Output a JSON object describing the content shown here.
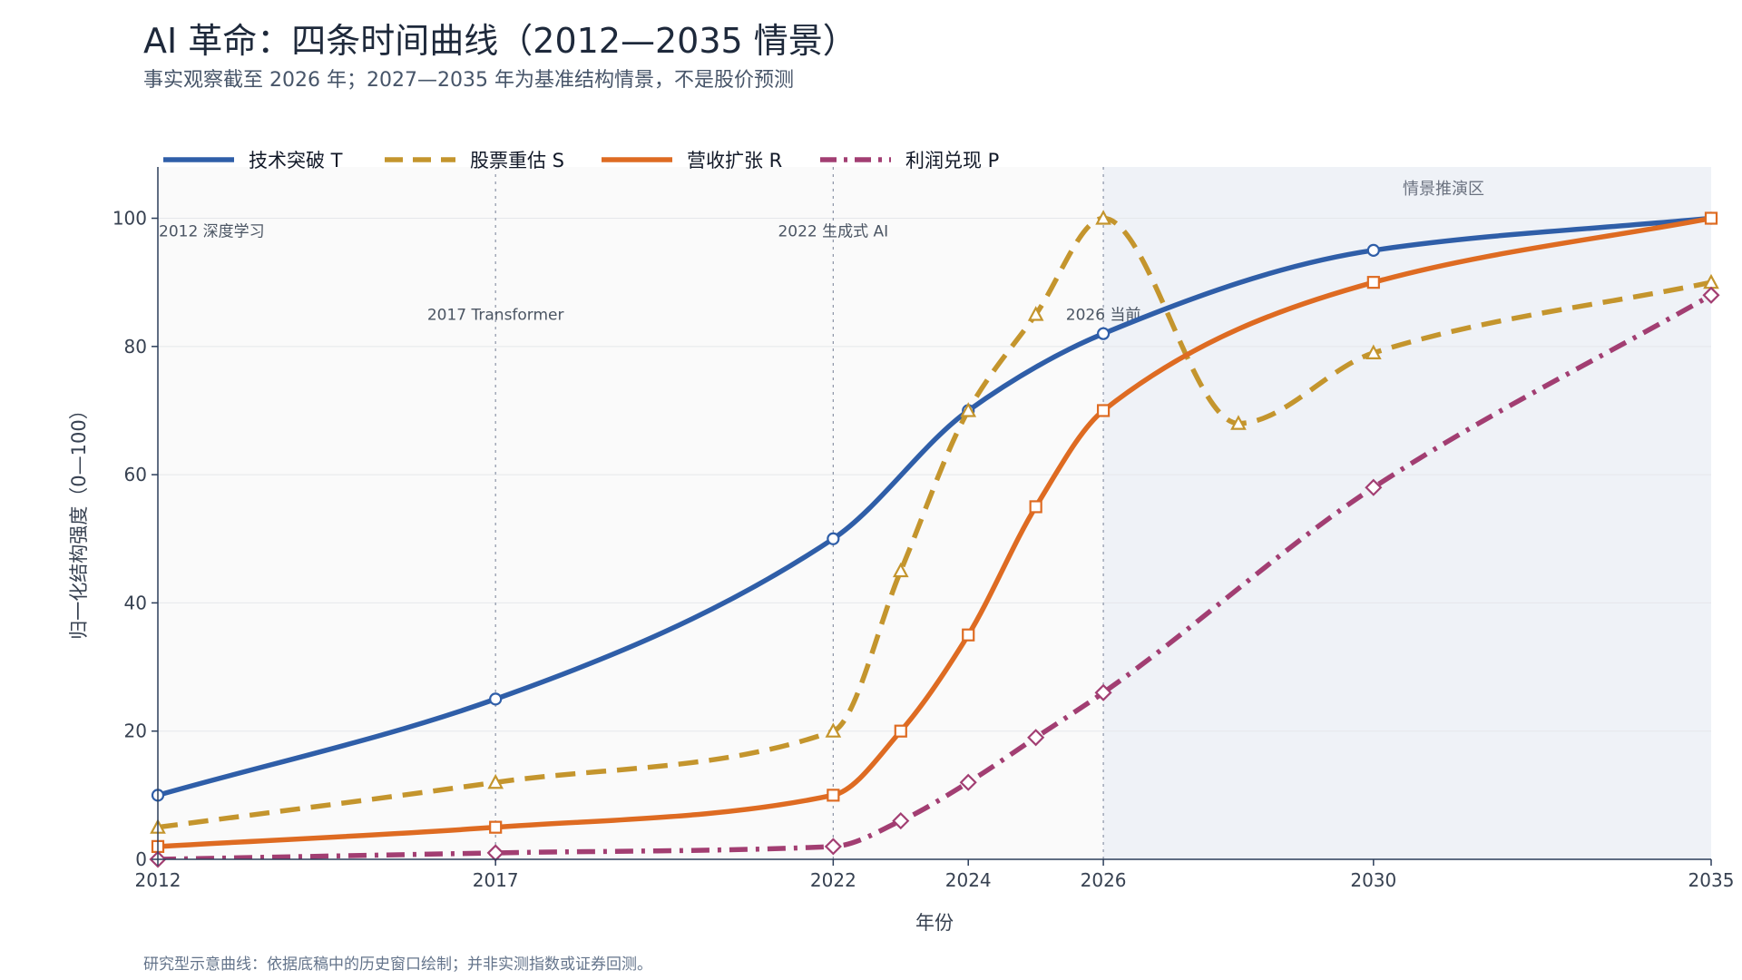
{
  "header": {
    "title": "AI 革命：四条时间曲线（2012—2035 情景）",
    "subtitle": "事实观察截至 2026 年；2027—2035 年为基准结构情景，不是股价预测"
  },
  "footnote": "研究型示意曲线：依据底稿中的历史窗口绘制；并非实测指数或证券回测。",
  "chart_data": {
    "type": "line",
    "xlabel": "年份",
    "ylabel": "归一化结构强度（0—100）",
    "xlim": [
      2012,
      2035
    ],
    "ylim": [
      0,
      108
    ],
    "x_ticks": [
      2012,
      2017,
      2022,
      2024,
      2026,
      2030,
      2035
    ],
    "y_ticks": [
      0,
      20,
      40,
      60,
      80,
      100
    ],
    "grid": "horizontal",
    "legend_position": "top-left",
    "scenario_region": {
      "from": 2026,
      "to": 2035,
      "label": "情景推演区"
    },
    "events": [
      {
        "x": 2012,
        "label": "2012  深度学习",
        "label_y": 98
      },
      {
        "x": 2017,
        "label": "2017  Transformer",
        "label_y": 85
      },
      {
        "x": 2022,
        "label": "2022  生成式 AI",
        "label_y": 98
      },
      {
        "x": 2026,
        "label": "2026  当前",
        "label_y": 85
      }
    ],
    "series": [
      {
        "name": "技术突破 T",
        "color": "#2f5ea8",
        "dash": "solid",
        "marker": "circle",
        "x": [
          2012,
          2017,
          2022,
          2024,
          2026,
          2030,
          2035
        ],
        "values": [
          10,
          25,
          50,
          70,
          82,
          95,
          100
        ]
      },
      {
        "name": "股票重估 S",
        "color": "#c4952d",
        "dash": "dash",
        "marker": "triangle",
        "x": [
          2012,
          2017,
          2022,
          2023,
          2024,
          2025,
          2026,
          2028,
          2030,
          2035
        ],
        "values": [
          5,
          12,
          20,
          45,
          70,
          85,
          100,
          68,
          79,
          90
        ]
      },
      {
        "name": "营收扩张 R",
        "color": "#de6b22",
        "dash": "solid",
        "marker": "square",
        "x": [
          2012,
          2017,
          2022,
          2023,
          2024,
          2025,
          2026,
          2030,
          2035
        ],
        "values": [
          2,
          5,
          10,
          20,
          35,
          55,
          70,
          90,
          100
        ]
      },
      {
        "name": "利润兑现 P",
        "color": "#a23e72",
        "dash": "dashdot",
        "marker": "diamond",
        "x": [
          2012,
          2017,
          2022,
          2023,
          2024,
          2025,
          2026,
          2030,
          2035
        ],
        "values": [
          0,
          1,
          2,
          6,
          12,
          19,
          26,
          58,
          88
        ]
      }
    ]
  }
}
